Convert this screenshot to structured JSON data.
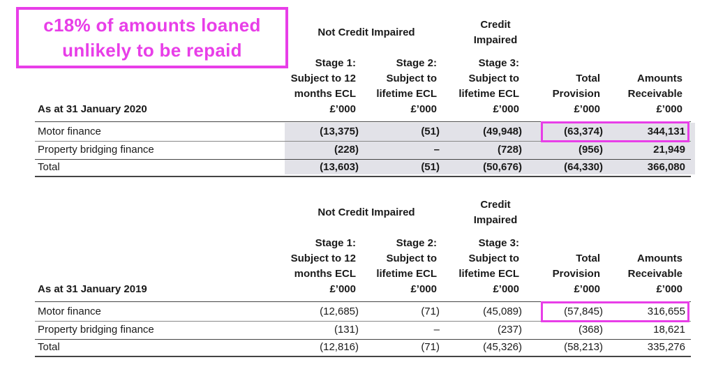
{
  "callout": {
    "line1": "c18% of amounts loaned",
    "line2": "unlikely to be repaid"
  },
  "colors": {
    "highlight": "#e83ee8",
    "shade": "#e2e2e8"
  },
  "tables": [
    {
      "group_not_impaired": "Not Credit Impaired",
      "group_impaired_l1": "Credit",
      "group_impaired_l2": "Impaired",
      "row_header": "As at 31 January 2020",
      "columns": [
        [
          "Stage 1:",
          "Subject to 12",
          "months ECL",
          "£’000"
        ],
        [
          "Stage 2:",
          "Subject to",
          "lifetime ECL",
          "£’000"
        ],
        [
          "Stage 3:",
          "Subject to",
          "lifetime ECL",
          "£’000"
        ],
        [
          "Total",
          "Provision",
          "£’000"
        ],
        [
          "Amounts",
          "Receivable",
          "£’000"
        ]
      ],
      "rows": [
        {
          "label": "Motor finance",
          "values": [
            "(13,375)",
            "(51)",
            "(49,948)",
            "(63,374)",
            "344,131"
          ]
        },
        {
          "label": "Property bridging finance",
          "values": [
            "(228)",
            "–",
            "(728)",
            "(956)",
            "21,949"
          ]
        },
        {
          "label": "Total",
          "values": [
            "(13,603)",
            "(51)",
            "(50,676)",
            "(64,330)",
            "366,080"
          ]
        }
      ]
    },
    {
      "group_not_impaired": "Not Credit Impaired",
      "group_impaired_l1": "Credit",
      "group_impaired_l2": "Impaired",
      "row_header": "As at 31 January 2019",
      "columns": [
        [
          "Stage 1:",
          "Subject to 12",
          "months ECL",
          "£’000"
        ],
        [
          "Stage 2:",
          "Subject to",
          "lifetime ECL",
          "£’000"
        ],
        [
          "Stage 3:",
          "Subject to",
          "lifetime ECL",
          "£’000"
        ],
        [
          "Total",
          "Provision",
          "£’000"
        ],
        [
          "Amounts",
          "Receivable",
          "£’000"
        ]
      ],
      "rows": [
        {
          "label": "Motor finance",
          "values": [
            "(12,685)",
            "(71)",
            "(45,089)",
            "(57,845)",
            "316,655"
          ]
        },
        {
          "label": "Property bridging finance",
          "values": [
            "(131)",
            "–",
            "(237)",
            "(368)",
            "18,621"
          ]
        },
        {
          "label": "Total",
          "values": [
            "(12,816)",
            "(71)",
            "(45,326)",
            "(58,213)",
            "335,276"
          ]
        }
      ]
    }
  ]
}
